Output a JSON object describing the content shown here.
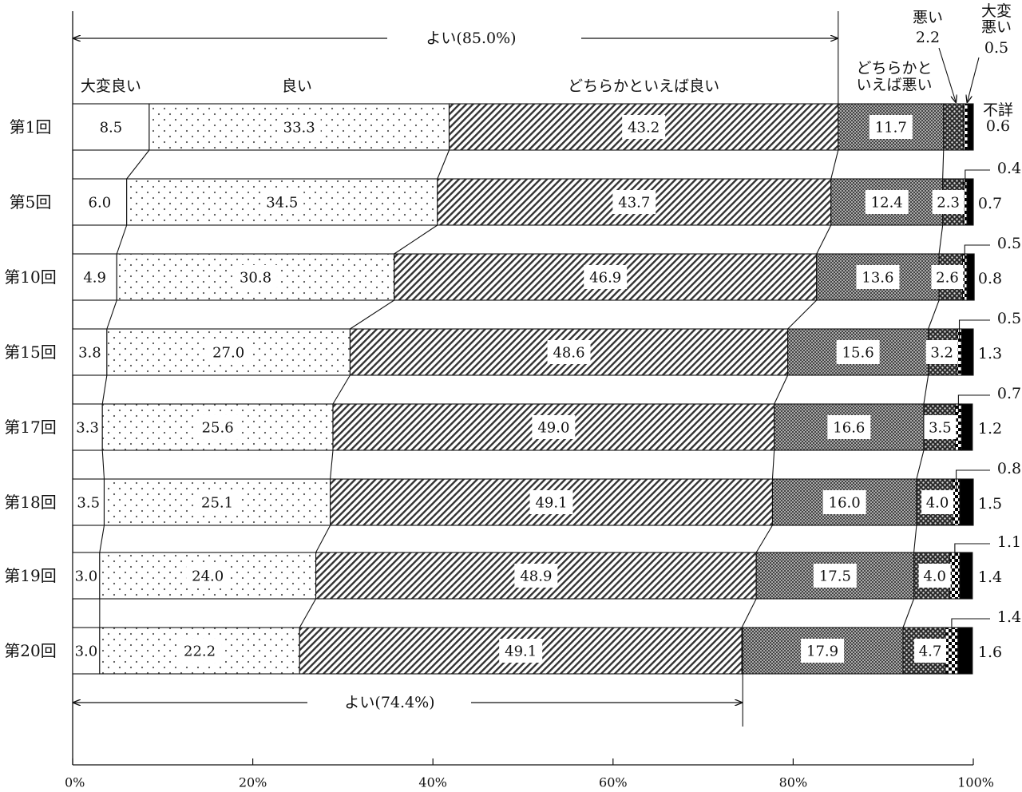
{
  "chart_data": {
    "type": "bar",
    "orientation": "horizontal",
    "stacked": true,
    "percent_scale": true,
    "categories": [
      "第1回",
      "第5回",
      "第10回",
      "第15回",
      "第17回",
      "第18回",
      "第19回",
      "第20回"
    ],
    "series": [
      {
        "name": "大変良い",
        "values": [
          8.5,
          6.0,
          4.9,
          3.8,
          3.3,
          3.5,
          3.0,
          3.0
        ]
      },
      {
        "name": "良い",
        "values": [
          33.3,
          34.5,
          30.8,
          27.0,
          25.6,
          25.1,
          24.0,
          22.2
        ]
      },
      {
        "name": "どちらかといえば良い",
        "values": [
          43.2,
          43.7,
          46.9,
          48.6,
          49.0,
          49.1,
          48.9,
          49.1
        ]
      },
      {
        "name": "どちらかといえば悪い",
        "values": [
          11.7,
          12.4,
          13.6,
          15.6,
          16.6,
          16.0,
          17.5,
          17.9
        ]
      },
      {
        "name": "悪い",
        "values": [
          2.2,
          2.3,
          2.6,
          3.2,
          3.5,
          4.0,
          4.0,
          4.7
        ]
      },
      {
        "name": "大変悪い",
        "values": [
          0.5,
          0.4,
          0.5,
          0.5,
          0.7,
          0.8,
          1.1,
          1.4
        ]
      },
      {
        "name": "不詳",
        "values": [
          0.6,
          0.7,
          0.8,
          1.3,
          1.2,
          1.5,
          1.4,
          1.6
        ]
      }
    ],
    "header_labels": {
      "very_good": "大変良い",
      "good": "良い",
      "somewhat_good": "どちらかといえば良い",
      "somewhat_bad": "どちらかと\nいえば悪い",
      "bad": "悪い",
      "very_bad": "大変\n悪い",
      "unknown": "不詳"
    },
    "annotations": {
      "top_bracket": "よい(85.0%)",
      "bottom_bracket": "よい(74.4%)",
      "top_bracket_value": 85.0,
      "bottom_bracket_value": 74.4
    },
    "x_ticks": [
      "0%",
      "20%",
      "40%",
      "60%",
      "80%",
      "100%"
    ],
    "x_tick_values": [
      0,
      20,
      40,
      60,
      80,
      100
    ],
    "xlim": [
      0,
      100
    ],
    "title": "",
    "xlabel": "",
    "ylabel": ""
  }
}
